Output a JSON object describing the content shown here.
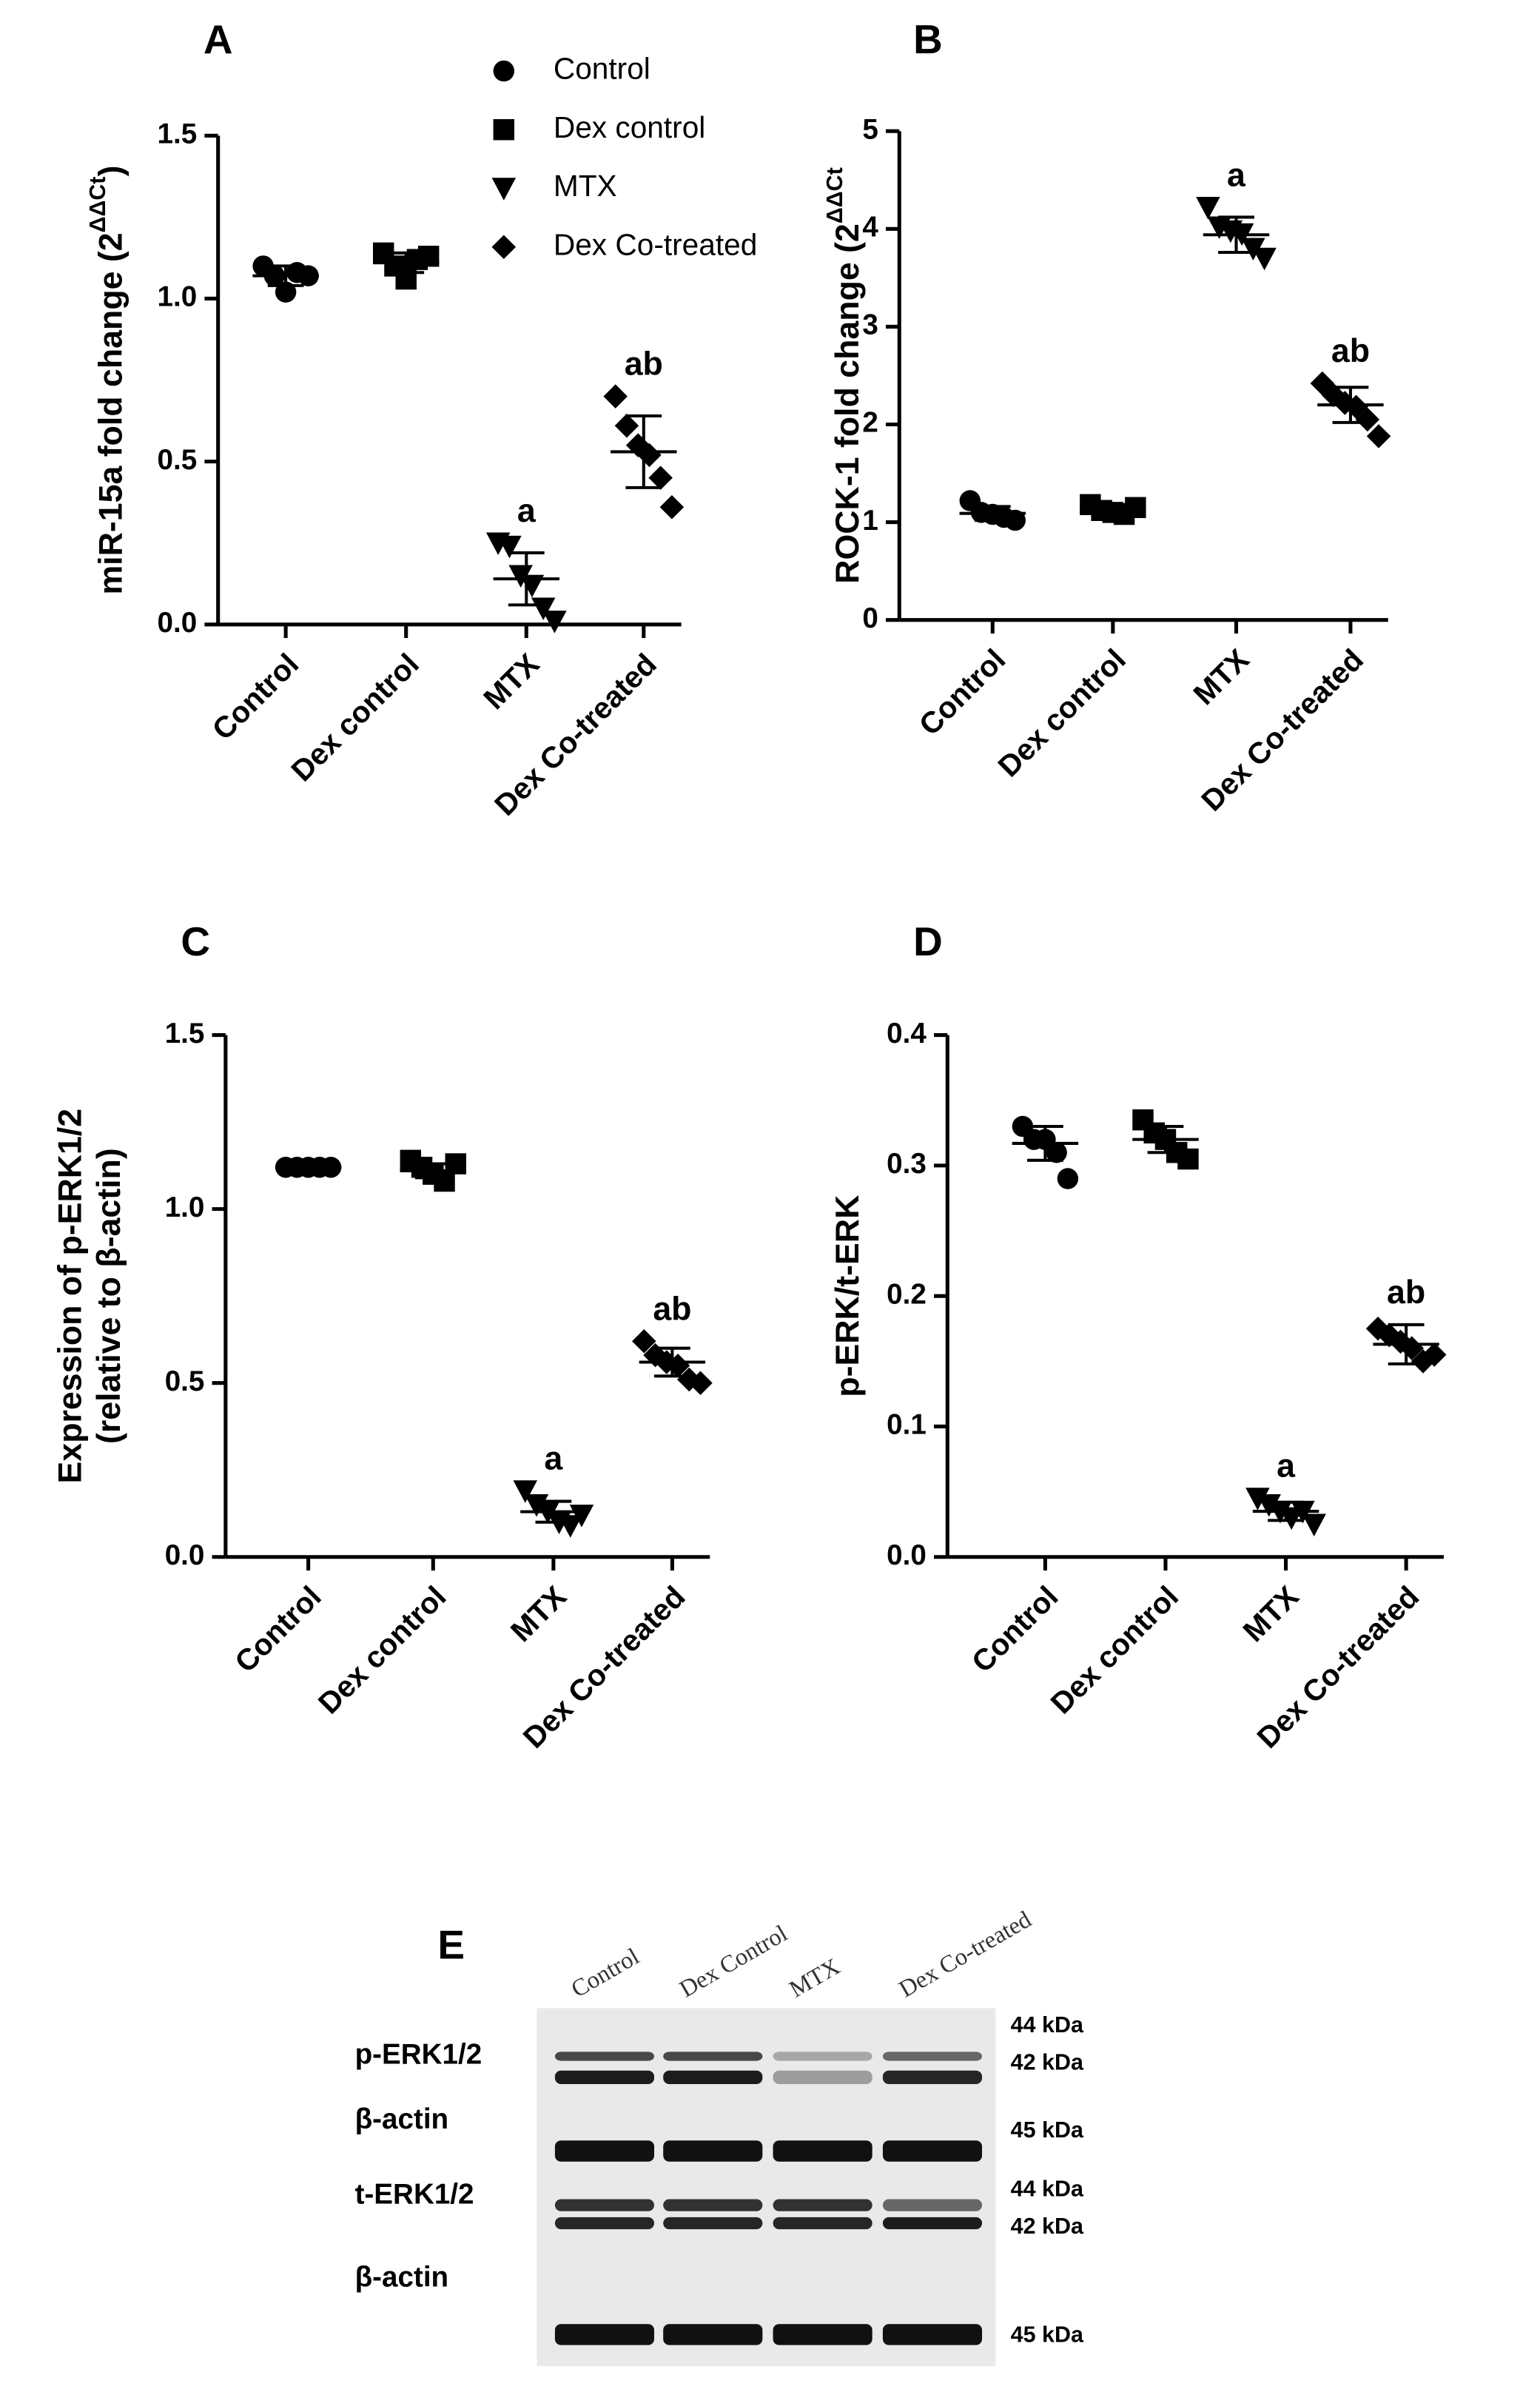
{
  "chart_data": [
    {
      "type": "dotplot",
      "panel": "A",
      "ylabel": "miR-15a fold change (2",
      "ylabel_sup": "ΔΔCt",
      "ylabel_end": ")",
      "categories": [
        "Control",
        "Dex control",
        "MTX",
        "Dex Co-treated"
      ],
      "markers": [
        "circle",
        "square",
        "triangle-down",
        "diamond"
      ],
      "legend": [
        "Control",
        "Dex control",
        "MTX",
        "Dex Co-treated"
      ],
      "points": [
        [
          1.1,
          1.07,
          1.02,
          1.08,
          1.07
        ],
        [
          1.14,
          1.1,
          1.06,
          1.12,
          1.13
        ],
        [
          0.25,
          0.24,
          0.15,
          0.12,
          0.05,
          0.01
        ],
        [
          0.7,
          0.61,
          0.55,
          0.52,
          0.45,
          0.36
        ]
      ],
      "means": [
        1.07,
        1.11,
        0.14,
        0.53
      ],
      "errors": [
        0.03,
        0.03,
        0.08,
        0.11
      ],
      "annotations": [
        null,
        null,
        "a",
        "ab"
      ],
      "ylim": [
        0,
        1.5
      ],
      "yticks": [
        {
          "value": 0,
          "label": "0.0"
        },
        0.5,
        {
          "value": 1,
          "label": "1.0"
        },
        1.5
      ],
      "color": "#000000"
    },
    {
      "type": "dotplot",
      "panel": "B",
      "ylabel": "ROCK-1 fold change (2",
      "ylabel_sup": "ΔΔCt",
      "categories": [
        "Control",
        "Dex control",
        "MTX",
        "Dex Co-treated"
      ],
      "markers": [
        "circle",
        "square",
        "triangle-down",
        "diamond"
      ],
      "points": [
        [
          1.22,
          1.1,
          1.08,
          1.05,
          1.02
        ],
        [
          1.18,
          1.12,
          1.1,
          1.08,
          1.15
        ],
        [
          4.22,
          4.02,
          3.98,
          3.95,
          3.8,
          3.7
        ],
        [
          2.42,
          2.3,
          2.22,
          2.18,
          2.05,
          1.88
        ]
      ],
      "means": [
        1.09,
        1.13,
        3.94,
        2.2
      ],
      "errors": [
        0.07,
        0.05,
        0.18,
        0.18
      ],
      "annotations": [
        null,
        null,
        "a",
        "ab"
      ],
      "ylim": [
        0,
        5
      ],
      "yticks": [
        0,
        1,
        2,
        3,
        4,
        5
      ],
      "color": "#000000"
    },
    {
      "type": "dotplot",
      "panel": "C",
      "ylabel": [
        "Expression of p-ERK1/2",
        "(relative to β-actin)"
      ],
      "categories": [
        "Control",
        "Dex control",
        "MTX",
        "Dex Co-treated"
      ],
      "markers": [
        "circle",
        "square",
        "triangle-down",
        "diamond"
      ],
      "points": [
        [
          1.12,
          1.12,
          1.12,
          1.12,
          1.12
        ],
        [
          1.14,
          1.12,
          1.1,
          1.08,
          1.13
        ],
        [
          0.19,
          0.15,
          0.13,
          0.1,
          0.09,
          0.12
        ],
        [
          0.62,
          0.58,
          0.56,
          0.55,
          0.51,
          0.5
        ]
      ],
      "means": [
        1.12,
        1.11,
        0.13,
        0.56
      ],
      "errors": [
        0.01,
        0.02,
        0.03,
        0.04
      ],
      "annotations": [
        null,
        null,
        "a",
        "ab"
      ],
      "ylim": [
        0,
        1.5
      ],
      "yticks": [
        {
          "value": 0,
          "label": "0.0"
        },
        0.5,
        {
          "value": 1,
          "label": "1.0"
        },
        1.5
      ],
      "color": "#000000"
    },
    {
      "type": "dotplot",
      "panel": "D",
      "ylabel": "p-ERK/t-ERK",
      "categories": [
        "Control",
        "Dex control",
        "MTX",
        "Dex Co-treated"
      ],
      "markers": [
        "circle",
        "square",
        "triangle-down",
        "diamond"
      ],
      "points": [
        [
          0.33,
          0.32,
          0.32,
          0.31,
          0.29
        ],
        [
          0.335,
          0.325,
          0.32,
          0.31,
          0.305
        ],
        [
          0.045,
          0.04,
          0.035,
          0.03,
          0.035,
          0.025
        ],
        [
          0.175,
          0.17,
          0.165,
          0.16,
          0.15,
          0.155
        ]
      ],
      "means": [
        0.317,
        0.32,
        0.035,
        0.163
      ],
      "errors": [
        0.013,
        0.01,
        0.007,
        0.015
      ],
      "annotations": [
        null,
        null,
        "a",
        "ab"
      ],
      "ylim": [
        0,
        0.4
      ],
      "yticks": [
        {
          "value": 0,
          "label": "0.0"
        },
        0.1,
        0.2,
        0.3,
        0.4
      ],
      "color": "#000000"
    }
  ],
  "blot": {
    "panel": "E",
    "lanes": [
      "Control",
      "Dex Control",
      "MTX",
      "Dex Co-treated"
    ],
    "rows": [
      "p-ERK1/2",
      "β-actin",
      "t-ERK1/2",
      "β-actin"
    ],
    "sizes": [
      "44 kDa",
      "42 kDa",
      "45 kDa",
      "44 kDa",
      "42 kDa",
      "45 kDa"
    ]
  }
}
